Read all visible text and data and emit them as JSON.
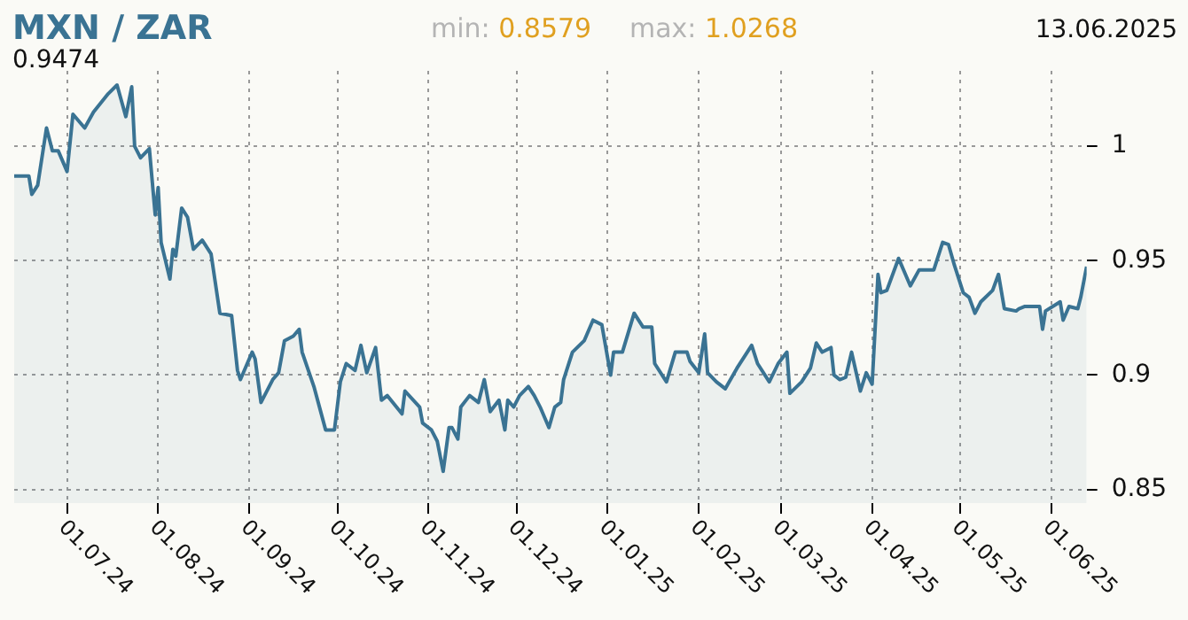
{
  "chart_data": {
    "type": "area",
    "title": "MXN / ZAR",
    "annotations": [
      "min: 0.8579",
      "max: 1.0268",
      "13.06.2025",
      "0.9474"
    ],
    "x": [
      "2024-06-13",
      "2024-06-18",
      "2024-06-19",
      "2024-06-21",
      "2024-06-24",
      "2024-06-26",
      "2024-06-28",
      "2024-07-01",
      "2024-07-03",
      "2024-07-07",
      "2024-07-10",
      "2024-07-15",
      "2024-07-18",
      "2024-07-21",
      "2024-07-23",
      "2024-07-24",
      "2024-07-26",
      "2024-07-29",
      "2024-07-31",
      "2024-08-01",
      "2024-08-02",
      "2024-08-05",
      "2024-08-06",
      "2024-08-07",
      "2024-08-09",
      "2024-08-11",
      "2024-08-13",
      "2024-08-16",
      "2024-08-19",
      "2024-08-22",
      "2024-08-26",
      "2024-08-28",
      "2024-08-29",
      "2024-09-02",
      "2024-09-03",
      "2024-09-05",
      "2024-09-09",
      "2024-09-11",
      "2024-09-13",
      "2024-09-16",
      "2024-09-18",
      "2024-09-19",
      "2024-09-23",
      "2024-09-27",
      "2024-09-30",
      "2024-10-02",
      "2024-10-04",
      "2024-10-07",
      "2024-10-09",
      "2024-10-11",
      "2024-10-14",
      "2024-10-16",
      "2024-10-18",
      "2024-10-23",
      "2024-10-24",
      "2024-10-29",
      "2024-10-30",
      "2024-11-02",
      "2024-11-04",
      "2024-11-06",
      "2024-11-08",
      "2024-11-09",
      "2024-11-11",
      "2024-11-12",
      "2024-11-15",
      "2024-11-18",
      "2024-11-20",
      "2024-11-22",
      "2024-11-25",
      "2024-11-27",
      "2024-11-28",
      "2024-11-30",
      "2024-12-02",
      "2024-12-05",
      "2024-12-07",
      "2024-12-09",
      "2024-12-12",
      "2024-12-14",
      "2024-12-16",
      "2024-12-17",
      "2024-12-20",
      "2024-12-24",
      "2024-12-27",
      "2024-12-30",
      "2025-01-02",
      "2025-01-03",
      "2025-01-06",
      "2025-01-10",
      "2025-01-13",
      "2025-01-16",
      "2025-01-17",
      "2025-01-21",
      "2025-01-24",
      "2025-01-28",
      "2025-01-29",
      "2025-02-01",
      "2025-02-03",
      "2025-02-04",
      "2025-02-07",
      "2025-02-10",
      "2025-02-14",
      "2025-02-19",
      "2025-02-21",
      "2025-02-25",
      "2025-02-28",
      "2025-03-03",
      "2025-03-04",
      "2025-03-08",
      "2025-03-11",
      "2025-03-13",
      "2025-03-15",
      "2025-03-18",
      "2025-03-19",
      "2025-03-21",
      "2025-03-23",
      "2025-03-25",
      "2025-03-28",
      "2025-03-30",
      "2025-04-01",
      "2025-04-02",
      "2025-04-03",
      "2025-04-04",
      "2025-04-06",
      "2025-04-10",
      "2025-04-14",
      "2025-04-17",
      "2025-04-22",
      "2025-04-25",
      "2025-04-27",
      "2025-04-29",
      "2025-05-02",
      "2025-05-04",
      "2025-05-06",
      "2025-05-08",
      "2025-05-12",
      "2025-05-14",
      "2025-05-16",
      "2025-05-20",
      "2025-05-21",
      "2025-05-23",
      "2025-05-26",
      "2025-05-28",
      "2025-05-29",
      "2025-05-30",
      "2025-06-04",
      "2025-06-05",
      "2025-06-07",
      "2025-06-10",
      "2025-06-11",
      "2025-06-13"
    ],
    "series": [
      {
        "color": "#3a7393",
        "values": [
          0.987,
          0.987,
          0.979,
          0.983,
          1.008,
          0.998,
          0.998,
          0.989,
          1.014,
          1.008,
          1.015,
          1.023,
          1.0268,
          1.013,
          1.026,
          1.0,
          0.995,
          0.999,
          0.97,
          0.982,
          0.958,
          0.942,
          0.955,
          0.952,
          0.973,
          0.969,
          0.955,
          0.959,
          0.953,
          0.927,
          0.926,
          0.902,
          0.898,
          0.91,
          0.907,
          0.888,
          0.898,
          0.901,
          0.915,
          0.917,
          0.92,
          0.91,
          0.895,
          0.876,
          0.876,
          0.897,
          0.905,
          0.902,
          0.913,
          0.901,
          0.912,
          0.889,
          0.891,
          0.883,
          0.893,
          0.886,
          0.879,
          0.876,
          0.871,
          0.8579,
          0.877,
          0.877,
          0.872,
          0.886,
          0.891,
          0.888,
          0.898,
          0.884,
          0.889,
          0.876,
          0.889,
          0.886,
          0.891,
          0.895,
          0.891,
          0.886,
          0.877,
          0.886,
          0.888,
          0.898,
          0.91,
          0.915,
          0.924,
          0.922,
          0.9,
          0.91,
          0.91,
          0.927,
          0.921,
          0.921,
          0.905,
          0.897,
          0.91,
          0.91,
          0.906,
          0.901,
          0.918,
          0.901,
          0.897,
          0.894,
          0.903,
          0.913,
          0.905,
          0.897,
          0.905,
          0.91,
          0.892,
          0.897,
          0.903,
          0.914,
          0.91,
          0.912,
          0.9,
          0.898,
          0.899,
          0.91,
          0.893,
          0.901,
          0.896,
          0.92,
          0.944,
          0.936,
          0.937,
          0.951,
          0.939,
          0.946,
          0.946,
          0.958,
          0.957,
          0.948,
          0.936,
          0.934,
          0.927,
          0.932,
          0.937,
          0.944,
          0.929,
          0.928,
          0.929,
          0.93,
          0.93,
          0.93,
          0.92,
          0.928,
          0.932,
          0.924,
          0.93,
          0.929,
          0.934,
          0.9474
        ]
      }
    ],
    "xlim": [
      "2024-06-13",
      "2025-06-13"
    ],
    "xticks": [
      {
        "value": "2024-07-01",
        "label": "01.07.24"
      },
      {
        "value": "2024-08-01",
        "label": "01.08.24"
      },
      {
        "value": "2024-09-01",
        "label": "01.09.24"
      },
      {
        "value": "2024-10-01",
        "label": "01.10.24"
      },
      {
        "value": "2024-11-01",
        "label": "01.11.24"
      },
      {
        "value": "2024-12-01",
        "label": "01.12.24"
      },
      {
        "value": "2025-01-01",
        "label": "01.01.25"
      },
      {
        "value": "2025-02-01",
        "label": "01.02.25"
      },
      {
        "value": "2025-03-01",
        "label": "01.03.25"
      },
      {
        "value": "2025-04-01",
        "label": "01.04.25"
      },
      {
        "value": "2025-05-01",
        "label": "01.05.25"
      },
      {
        "value": "2025-06-01",
        "label": "01.06.25"
      }
    ],
    "ylim": [
      0.844,
      1.033
    ],
    "yticks": [
      0.85,
      0.9,
      0.95,
      1
    ],
    "grid": true
  }
}
